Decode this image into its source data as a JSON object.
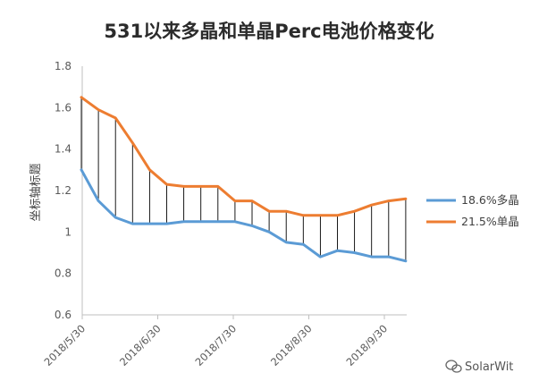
{
  "chart_data": {
    "type": "line",
    "title": "531以来多晶和单晶Perc电池价格变化",
    "ylabel": "坐标轴标题",
    "ylim": [
      0.6,
      1.8
    ],
    "yticks": [
      "0.6",
      "0.8",
      "1",
      "1.2",
      "1.4",
      "1.6",
      "1.8"
    ],
    "xtick_labels": [
      "2018/5/30",
      "2018/6/30",
      "2018/7/30",
      "2018/8/30",
      "2018/9/30"
    ],
    "grid": false,
    "legend_position": "right",
    "drop_lines": true,
    "series": [
      {
        "name": "18.6%多晶",
        "color": "#5b9bd5",
        "values": [
          1.3,
          1.15,
          1.07,
          1.04,
          1.04,
          1.04,
          1.05,
          1.05,
          1.05,
          1.05,
          1.03,
          1.0,
          0.95,
          0.94,
          0.88,
          0.91,
          0.9,
          0.88,
          0.88,
          0.86
        ]
      },
      {
        "name": "21.5%单晶",
        "color": "#ed7d31",
        "values": [
          1.65,
          1.59,
          1.55,
          1.43,
          1.3,
          1.23,
          1.22,
          1.22,
          1.22,
          1.15,
          1.15,
          1.1,
          1.1,
          1.08,
          1.08,
          1.08,
          1.1,
          1.13,
          1.15,
          1.16
        ]
      }
    ]
  },
  "watermark": {
    "text": "SolarWit",
    "icon": "wechat-icon"
  }
}
